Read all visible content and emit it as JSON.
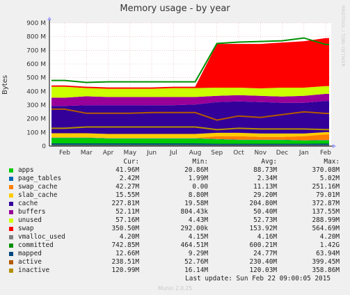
{
  "title": "Memory usage - by year",
  "side_credit": "RRDTOOL / TOBI OETIKER",
  "footer": "Munin 2.0.25",
  "last_update": "Last update:  Sun Feb 22 09:00:05 2015",
  "legend_headers": [
    "Cur:",
    "Min:",
    "Avg:",
    "Max:"
  ],
  "legend": [
    {
      "name": "apps",
      "color": "#00cc00",
      "cur": "41.96M",
      "min": "20.86M",
      "avg": "88.73M",
      "max": "370.08M"
    },
    {
      "name": "page_tables",
      "color": "#0066b3",
      "cur": "2.42M",
      "min": "1.99M",
      "avg": "2.34M",
      "max": "5.02M"
    },
    {
      "name": "swap_cache",
      "color": "#ff8000",
      "cur": "42.27M",
      "min": "0.00",
      "avg": "11.13M",
      "max": "251.16M"
    },
    {
      "name": "slab_cache",
      "color": "#ffcc00",
      "cur": "15.55M",
      "min": "8.80M",
      "avg": "29.20M",
      "max": "79.01M"
    },
    {
      "name": "cache",
      "color": "#330099",
      "cur": "227.81M",
      "min": "19.58M",
      "avg": "204.80M",
      "max": "372.87M"
    },
    {
      "name": "buffers",
      "color": "#990099",
      "cur": "52.11M",
      "min": "804.43k",
      "avg": "50.40M",
      "max": "137.55M"
    },
    {
      "name": "unused",
      "color": "#ccff00",
      "cur": "57.16M",
      "min": "4.43M",
      "avg": "52.73M",
      "max": "288.99M"
    },
    {
      "name": "swap",
      "color": "#ff0000",
      "cur": "350.50M",
      "min": "292.00k",
      "avg": "153.92M",
      "max": "564.69M"
    },
    {
      "name": "vmalloc_used",
      "color": "#808080",
      "cur": "4.20M",
      "min": "4.15M",
      "avg": "4.16M",
      "max": "4.20M"
    },
    {
      "name": "committed",
      "color": "#008f00",
      "cur": "742.85M",
      "min": "464.51M",
      "avg": "600.21M",
      "max": "1.42G"
    },
    {
      "name": "mapped",
      "color": "#00487d",
      "cur": "12.66M",
      "min": "9.29M",
      "avg": "24.77M",
      "max": "63.94M"
    },
    {
      "name": "active",
      "color": "#b35a00",
      "cur": "238.51M",
      "min": "52.76M",
      "avg": "230.40M",
      "max": "399.45M"
    },
    {
      "name": "inactive",
      "color": "#b38f00",
      "cur": "120.99M",
      "min": "16.14M",
      "avg": "120.03M",
      "max": "358.86M"
    }
  ],
  "chart_data": {
    "type": "area",
    "title": "Memory usage - by year",
    "ylabel": "Bytes",
    "ylim": [
      0,
      900
    ],
    "yticks": [
      "0",
      "100 M",
      "200 M",
      "300 M",
      "400 M",
      "500 M",
      "600 M",
      "700 M",
      "800 M",
      "900 M"
    ],
    "x": [
      "Feb",
      "Mar",
      "Apr",
      "May",
      "Jun",
      "Jul",
      "Aug",
      "Sep",
      "Oct",
      "Nov",
      "Dec",
      "Jan",
      "Feb"
    ],
    "stacked_series": [
      {
        "name": "apps",
        "values": [
          60,
          60,
          55,
          55,
          55,
          55,
          55,
          50,
          45,
          45,
          45,
          40,
          42
        ]
      },
      {
        "name": "page_tables",
        "values": [
          2,
          2,
          2,
          2,
          2,
          2,
          2,
          2,
          2,
          2,
          2,
          2,
          2
        ]
      },
      {
        "name": "swap_cache",
        "values": [
          2,
          2,
          2,
          2,
          2,
          2,
          2,
          20,
          25,
          20,
          20,
          30,
          42
        ]
      },
      {
        "name": "slab_cache",
        "values": [
          30,
          30,
          30,
          30,
          30,
          30,
          30,
          25,
          25,
          25,
          25,
          20,
          16
        ]
      },
      {
        "name": "cache",
        "values": [
          200,
          205,
          210,
          210,
          210,
          210,
          215,
          225,
          230,
          230,
          225,
          225,
          228
        ]
      },
      {
        "name": "buffers",
        "values": [
          60,
          65,
          60,
          60,
          60,
          60,
          55,
          45,
          45,
          45,
          45,
          50,
          52
        ]
      },
      {
        "name": "unused",
        "values": [
          80,
          60,
          60,
          60,
          60,
          65,
          65,
          60,
          55,
          55,
          65,
          60,
          57
        ]
      },
      {
        "name": "swap",
        "values": [
          10,
          10,
          10,
          10,
          10,
          10,
          10,
          320,
          320,
          325,
          330,
          340,
          350
        ]
      }
    ],
    "line_series": [
      {
        "name": "committed",
        "values": [
          480,
          465,
          470,
          470,
          470,
          470,
          470,
          750,
          760,
          765,
          770,
          790,
          743
        ]
      },
      {
        "name": "active",
        "values": [
          270,
          240,
          240,
          240,
          245,
          245,
          245,
          190,
          220,
          210,
          230,
          250,
          239
        ]
      },
      {
        "name": "inactive",
        "values": [
          130,
          140,
          140,
          140,
          140,
          140,
          140,
          120,
          130,
          125,
          125,
          125,
          121
        ]
      },
      {
        "name": "mapped",
        "values": [
          15,
          15,
          15,
          15,
          15,
          15,
          15,
          12,
          12,
          12,
          12,
          12,
          13
        ]
      },
      {
        "name": "vmalloc_used",
        "values": [
          4,
          4,
          4,
          4,
          4,
          4,
          4,
          4,
          4,
          4,
          4,
          4,
          4
        ]
      }
    ]
  }
}
